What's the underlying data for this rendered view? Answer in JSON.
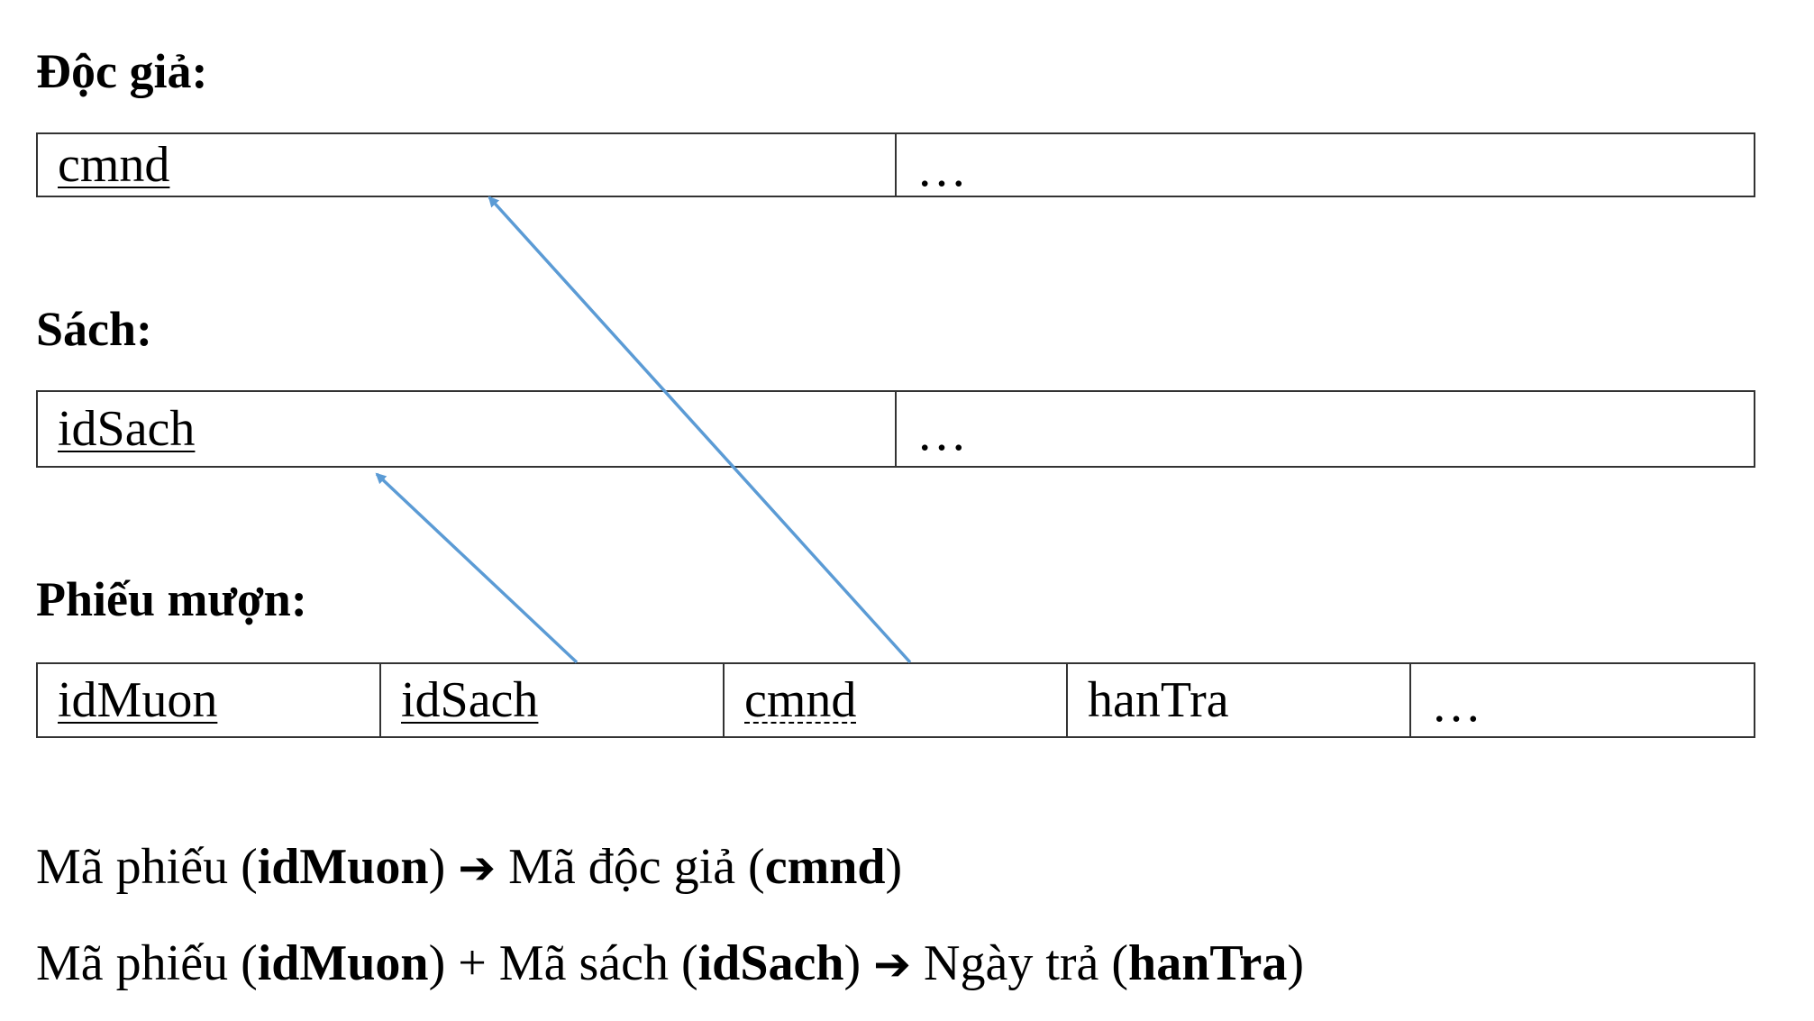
{
  "tables": {
    "docgia": {
      "title": "Độc giả:",
      "cells": [
        "cmnd",
        "…"
      ]
    },
    "sach": {
      "title": "Sách:",
      "cells": [
        "idSach",
        "…"
      ]
    },
    "phieumuon": {
      "title": "Phiếu mượn:",
      "cells": [
        "idMuon",
        "idSach",
        "cmnd",
        "hanTra",
        "…"
      ]
    }
  },
  "arrows": [
    {
      "from": "phieumuon.idSach",
      "to": "sach.idSach"
    },
    {
      "from": "phieumuon.cmnd",
      "to": "docgia.cmnd"
    }
  ],
  "arrow_color": "#5b9bd5",
  "dependencies": [
    {
      "parts": [
        {
          "t": "Mã phiếu (",
          "b": false
        },
        {
          "t": "idMuon",
          "b": true
        },
        {
          "t": ") ",
          "b": false
        },
        {
          "t": "➔",
          "arrow": true
        },
        {
          "t": " Mã độc giả (",
          "b": false
        },
        {
          "t": "cmnd",
          "b": true
        },
        {
          "t": ")",
          "b": false
        }
      ]
    },
    {
      "parts": [
        {
          "t": "Mã phiếu (",
          "b": false
        },
        {
          "t": "idMuon",
          "b": true
        },
        {
          "t": ") + Mã sách (",
          "b": false
        },
        {
          "t": "idSach",
          "b": true
        },
        {
          "t": ") ",
          "b": false
        },
        {
          "t": "➔",
          "arrow": true
        },
        {
          "t": " Ngày trả (",
          "b": false
        },
        {
          "t": "hanTra",
          "b": true
        },
        {
          "t": ")",
          "b": false
        }
      ]
    }
  ]
}
